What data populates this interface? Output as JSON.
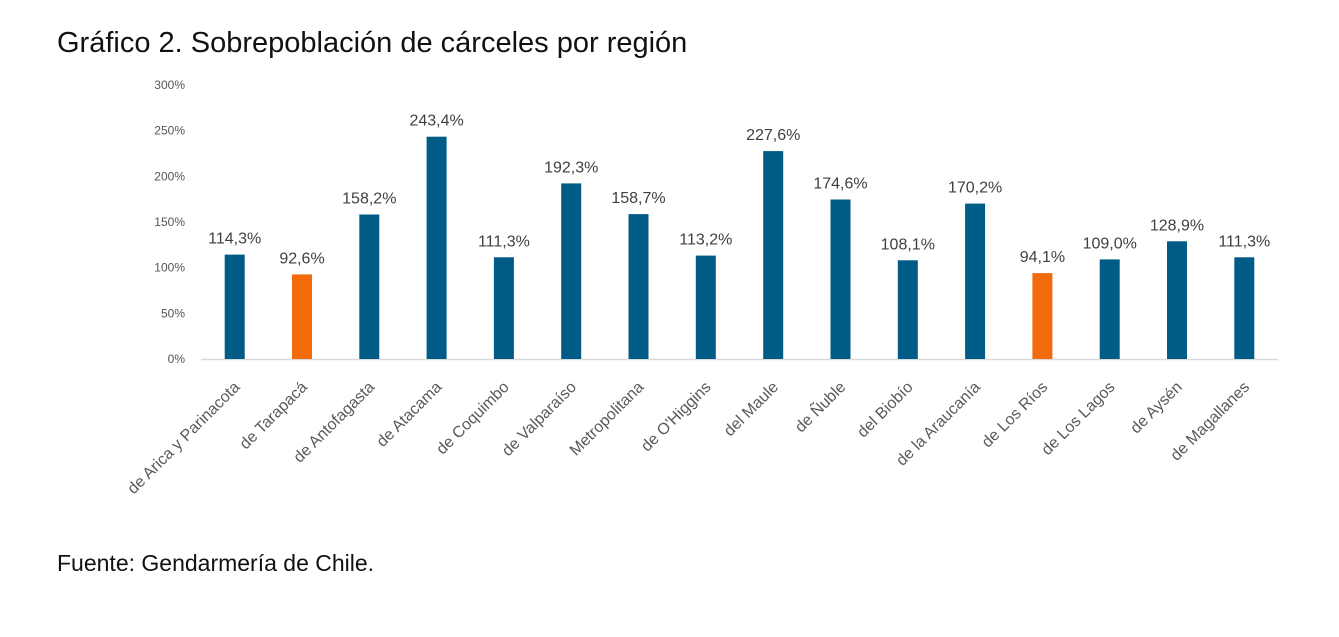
{
  "title": "Gráfico 2. Sobrepoblación de cárceles por región",
  "source": "Fuente: Gendarmería de Chile.",
  "colors": {
    "default_bar": "#005c86",
    "highlight_bar": "#f26a0a",
    "axis": "#d9d9d9"
  },
  "chart_data": {
    "type": "bar",
    "title": "",
    "xlabel": "",
    "ylabel": "",
    "ylim": [
      0,
      300
    ],
    "yticks": [
      0,
      50,
      100,
      150,
      200,
      250,
      300
    ],
    "ytick_labels": [
      "0%",
      "50%",
      "100%",
      "150%",
      "200%",
      "250%",
      "300%"
    ],
    "grid": false,
    "categories": [
      "de Arica y Parinacota",
      "de Tarapacá",
      "de Antofagasta",
      "de Atacama",
      "de Coquimbo",
      "de Valparaíso",
      "Metropolitana",
      "de O'Higgins",
      "del Maule",
      "de Ñuble",
      "del Biobío",
      "de la Araucanía",
      "de Los Ríos",
      "de Los Lagos",
      "de Aysén",
      "de Magallanes"
    ],
    "values": [
      114.3,
      92.6,
      158.2,
      243.4,
      111.3,
      192.3,
      158.7,
      113.2,
      227.6,
      174.6,
      108.1,
      170.2,
      94.1,
      109.0,
      128.9,
      111.3
    ],
    "data_labels": [
      "114,3%",
      "92,6%",
      "158,2%",
      "243,4%",
      "111,3%",
      "192,3%",
      "158,7%",
      "113,2%",
      "227,6%",
      "174,6%",
      "108,1%",
      "170,2%",
      "94,1%",
      "109,0%",
      "128,9%",
      "111,3%"
    ],
    "highlighted_categories": [
      "de Tarapacá",
      "de Los Ríos"
    ]
  }
}
